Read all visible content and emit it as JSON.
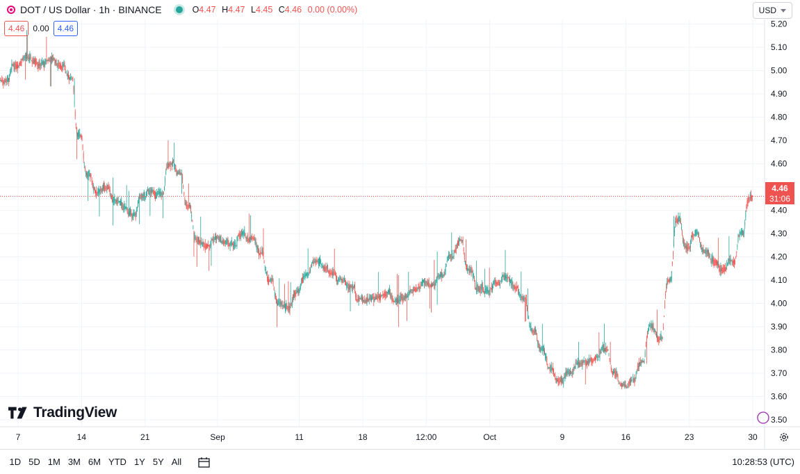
{
  "header": {
    "title": "DOT / US Dollar · 1h · BINANCE",
    "ohlc": [
      {
        "label": "O",
        "value": "4.47"
      },
      {
        "label": "H",
        "value": "4.47"
      },
      {
        "label": "L",
        "value": "4.45"
      },
      {
        "label": "C",
        "value": "4.46"
      }
    ],
    "change": "0.00 (0.00%)"
  },
  "badges": {
    "sell": "4.46",
    "spread": "0.00",
    "buy": "4.46"
  },
  "currency": "USD",
  "logo_text": "TradingView",
  "price_tag": {
    "price": "4.46",
    "countdown": "31:06"
  },
  "bottom": {
    "ranges": [
      "1D",
      "5D",
      "1M",
      "3M",
      "6M",
      "YTD",
      "1Y",
      "5Y",
      "All"
    ],
    "clock": "10:28:53 (UTC)"
  },
  "colors": {
    "up": "#26a69a",
    "down": "#ef5350",
    "grid": "#f0f3fa",
    "axis_text": "#131722"
  },
  "icons": [
    "dot-symbol-icon",
    "market-status-icon",
    "calendar-icon",
    "settings-icon",
    "chevron-down-icon"
  ],
  "chart_data": {
    "type": "candlestick",
    "title": "DOT / US Dollar · 1h · BINANCE",
    "ylim": [
      3.47,
      5.22
    ],
    "y_ticks": [
      "3.50",
      "3.60",
      "3.70",
      "3.80",
      "3.90",
      "4.00",
      "4.10",
      "4.20",
      "4.30",
      "4.40",
      "4.50",
      "4.60",
      "4.70",
      "4.80",
      "4.90",
      "5.00",
      "5.10",
      "5.20"
    ],
    "x_ticks": [
      "7",
      "14",
      "21",
      "Sep",
      "11",
      "18",
      "12:00",
      "Oct",
      "9",
      "16",
      "23",
      "30"
    ],
    "x_tick_index": [
      0,
      7,
      14,
      22,
      31,
      38,
      45,
      52,
      60,
      67,
      74,
      81
    ],
    "last_price": 4.46,
    "grid": true,
    "series": [
      {
        "daily_close": [
          4.96,
          5.02,
          5.06,
          5.04,
          5.03,
          5.05,
          5.02,
          4.97,
          4.72,
          4.55,
          4.48,
          4.5,
          4.44,
          4.41,
          4.38,
          4.46,
          4.48,
          4.47,
          4.6,
          4.56,
          4.42,
          4.27,
          4.25,
          4.28,
          4.26,
          4.25,
          4.3,
          4.28,
          4.22,
          4.1,
          4.0,
          3.98,
          4.05,
          4.12,
          4.18,
          4.15,
          4.13,
          4.1,
          4.07,
          4.02,
          4.02,
          4.03,
          4.05,
          4.01,
          4.03,
          4.06,
          4.09,
          4.08,
          4.12,
          4.2,
          4.27,
          4.14,
          4.06,
          4.05,
          4.09,
          4.11,
          4.07,
          4.02,
          3.88,
          3.8,
          3.72,
          3.67,
          3.7,
          3.74,
          3.75,
          3.77,
          3.8,
          3.7,
          3.65,
          3.67,
          3.75,
          3.9,
          3.85,
          4.1,
          4.36,
          4.24,
          4.3,
          4.22,
          4.18,
          4.15,
          4.18,
          4.3,
          4.46
        ]
      }
    ]
  }
}
